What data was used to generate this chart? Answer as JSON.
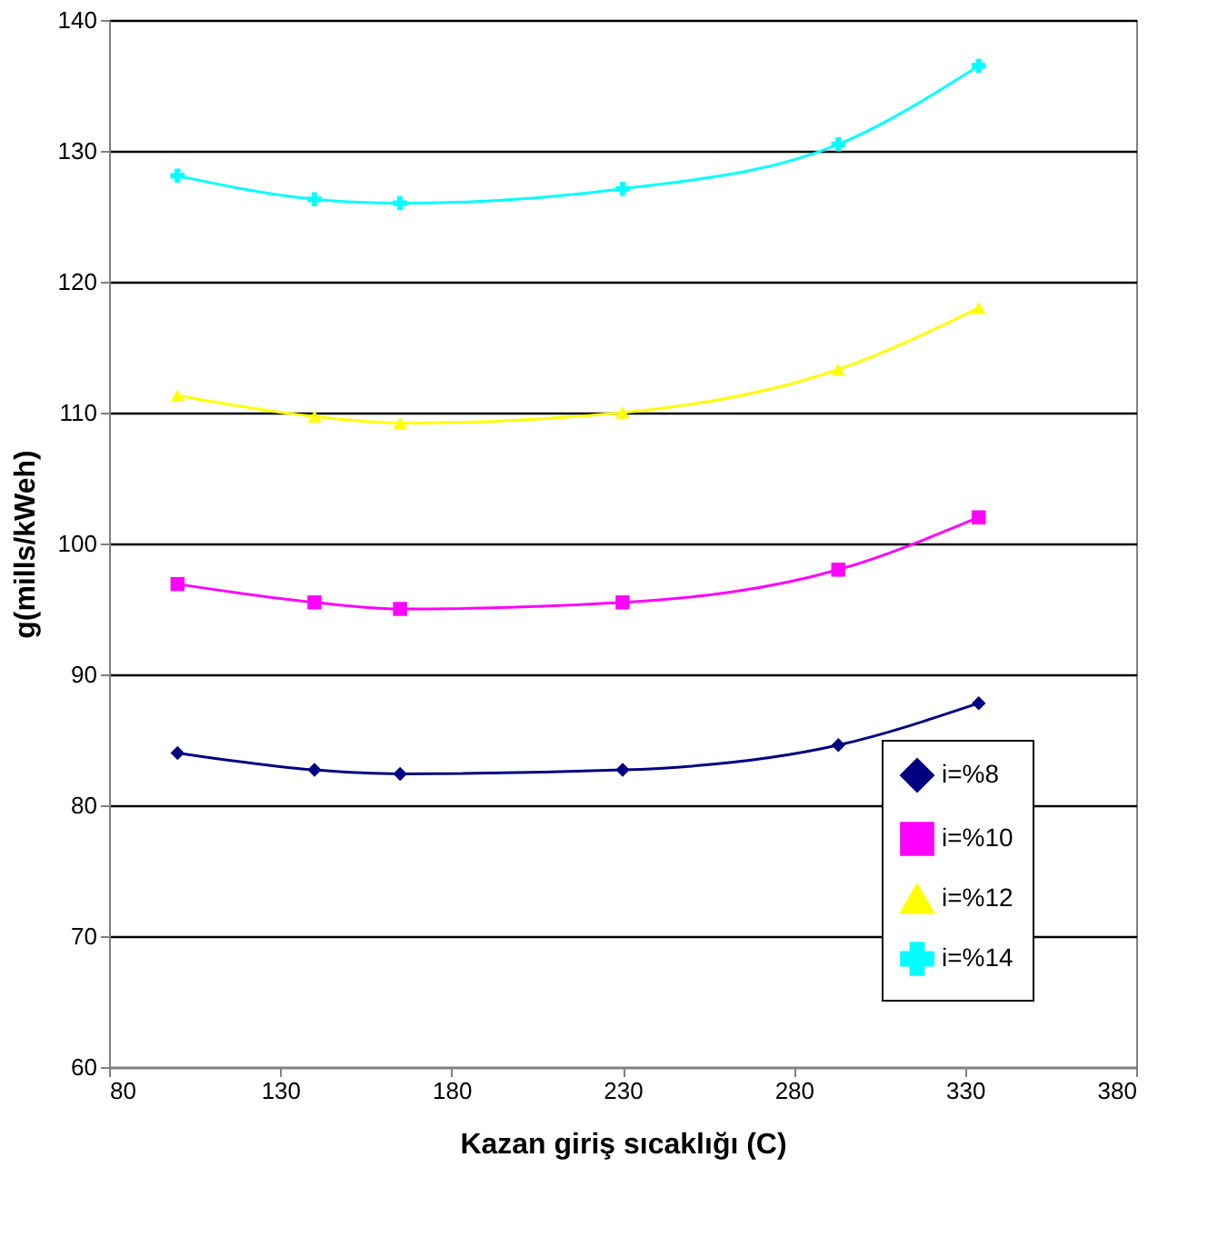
{
  "chart_data": {
    "type": "line",
    "xlabel": "Kazan giriş sıcaklığı (C)",
    "ylabel": "g(mills/kWeh)",
    "x": [
      100,
      140,
      165,
      230,
      293,
      334
    ],
    "xlim": [
      80,
      380
    ],
    "xticks": [
      80,
      130,
      180,
      230,
      280,
      330,
      380
    ],
    "ylim": [
      60,
      140
    ],
    "yticks": [
      60,
      70,
      80,
      90,
      100,
      110,
      120,
      130,
      140
    ],
    "grid": "y",
    "legend": "bottom right",
    "series": [
      {
        "name": "i=%8",
        "color": "#000080",
        "marker": "diamond",
        "values": [
          84,
          82.7,
          82.4,
          82.7,
          84.6,
          87.8
        ]
      },
      {
        "name": "i=%10",
        "color": "#ff00ff",
        "marker": "square",
        "values": [
          96.9,
          95.5,
          95,
          95.5,
          98,
          102
        ]
      },
      {
        "name": "i=%12",
        "color": "#ffff00",
        "marker": "triangle",
        "values": [
          111.3,
          109.7,
          109.2,
          110,
          113.3,
          118
        ]
      },
      {
        "name": "i=%14",
        "color": "#00ffff",
        "marker": "cross",
        "values": [
          128.1,
          126.3,
          126,
          127.1,
          130.5,
          136.5
        ]
      }
    ]
  }
}
